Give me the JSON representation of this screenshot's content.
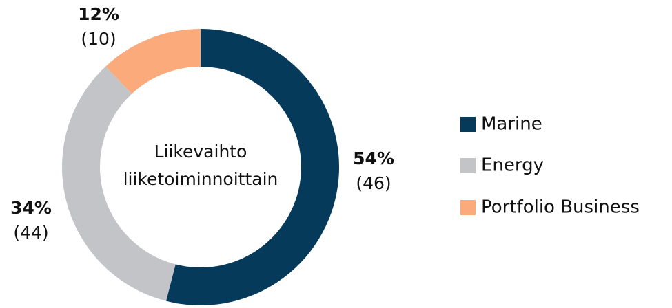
{
  "chart_data": {
    "type": "donut",
    "center_label": [
      "Liikevaihto",
      "liiketoiminnoittain"
    ],
    "categories": [
      "Marine",
      "Energy",
      "Portfolio Business"
    ],
    "values": [
      54,
      34,
      12
    ],
    "value_labels": [
      "54%",
      "34%",
      "12%"
    ],
    "secondary_labels": [
      "(46)",
      "(44)",
      "(10)"
    ],
    "colors": [
      "#063a5a",
      "#c3c4c8",
      "#fbaa7c"
    ],
    "legend": "right"
  }
}
